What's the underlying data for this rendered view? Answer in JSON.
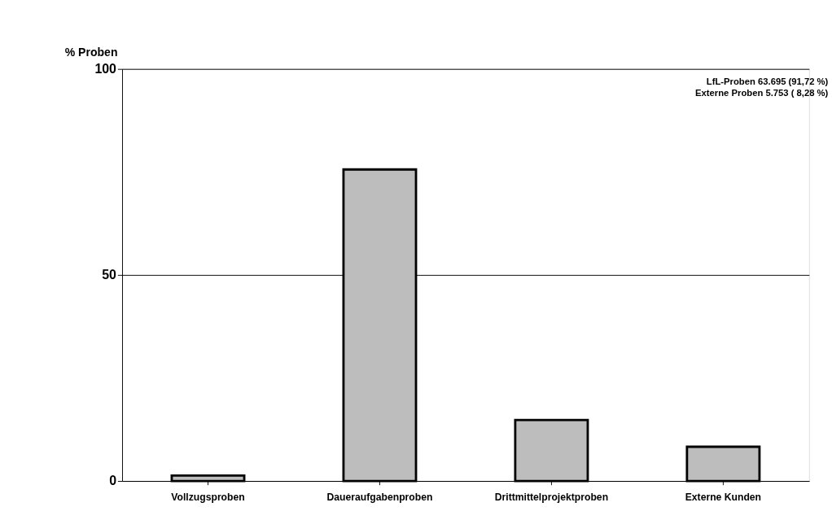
{
  "chart_data": {
    "type": "bar",
    "ylabel": "% Proben",
    "categories": [
      "Vollzugsproben",
      "Daueraufgabenproben",
      "Drittmittelprojektproben",
      "Externe Kunden"
    ],
    "values": [
      1.3,
      75.6,
      14.8,
      8.3
    ],
    "color": "#bdbdbd",
    "ylim": [
      0,
      100
    ],
    "yticks": [
      0,
      50,
      100
    ],
    "grid": "y",
    "annotations": [
      "LfL-Proben          63.695  (91,72 %)",
      "Externe Proben     5.753  ( 8,28 %)"
    ]
  }
}
